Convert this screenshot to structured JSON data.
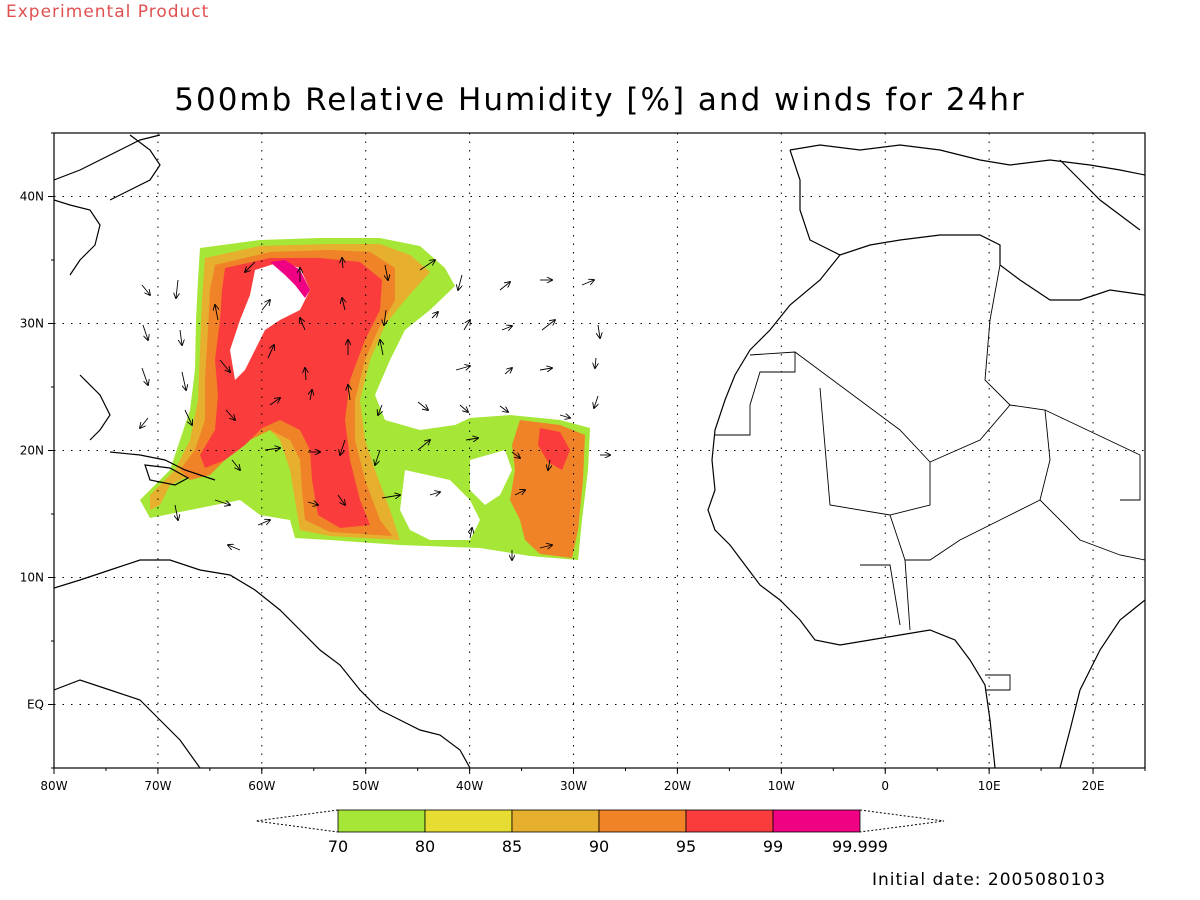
{
  "header": {
    "product_label": "Experimental Product",
    "title": "500mb Relative Humidity [%] and winds for 24hr",
    "initial_date": "Initial date: 2005080103"
  },
  "map": {
    "lat_labels": [
      "40N",
      "30N",
      "20N",
      "10N",
      "EQ"
    ],
    "lon_labels": [
      "80W",
      "70W",
      "60W",
      "50W",
      "40W",
      "30W",
      "20W",
      "10W",
      "0",
      "10E",
      "20E"
    ],
    "lon_range": [
      -80,
      25
    ],
    "lat_range": [
      -5,
      45
    ],
    "gridlines": "dotted"
  },
  "colorbar": {
    "levels": [
      "70",
      "80",
      "85",
      "90",
      "95",
      "99",
      "99.999"
    ],
    "colors": [
      "#a6e637",
      "#e6dc32",
      "#e6af2d",
      "#f08228",
      "#fa3c3c",
      "#f00082"
    ]
  }
}
